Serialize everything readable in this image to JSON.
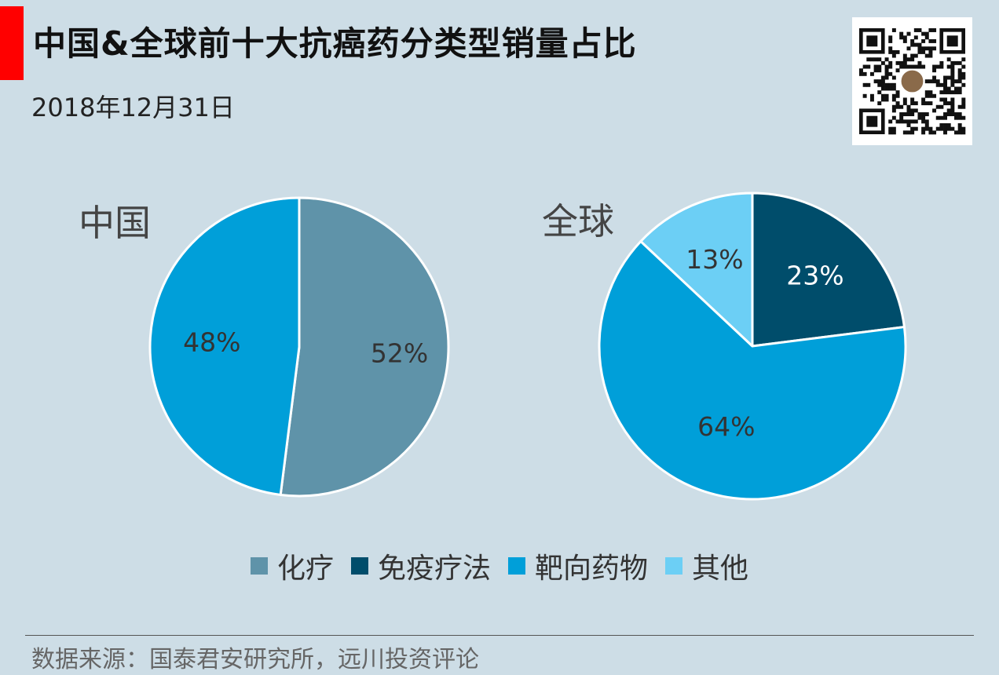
{
  "header": {
    "title": "中国&全球前十大抗癌药分类型销量占比",
    "subtitle": "2018年12月31日"
  },
  "colors": {
    "accent": "#ff0000",
    "background": "#cddde6",
    "化疗": "#5f93a9",
    "免疫疗法": "#004d6b",
    "靶向药物": "#009fd9",
    "其他": "#6ccff5"
  },
  "chart_data": [
    {
      "type": "pie",
      "title": "中国",
      "slices": [
        {
          "category": "化疗",
          "value": 52,
          "label": "52%"
        },
        {
          "category": "靶向药物",
          "value": 48,
          "label": "48%"
        }
      ]
    },
    {
      "type": "pie",
      "title": "全球",
      "slices": [
        {
          "category": "免疫疗法",
          "value": 23,
          "label": "23%"
        },
        {
          "category": "靶向药物",
          "value": 64,
          "label": "64%"
        },
        {
          "category": "其他",
          "value": 13,
          "label": "13%"
        }
      ]
    }
  ],
  "legend": {
    "position": "bottom",
    "items": [
      "化疗",
      "免疫疗法",
      "靶向药物",
      "其他"
    ]
  },
  "footer": {
    "source": "数据来源：国泰君安研究所，远川投资评论"
  }
}
